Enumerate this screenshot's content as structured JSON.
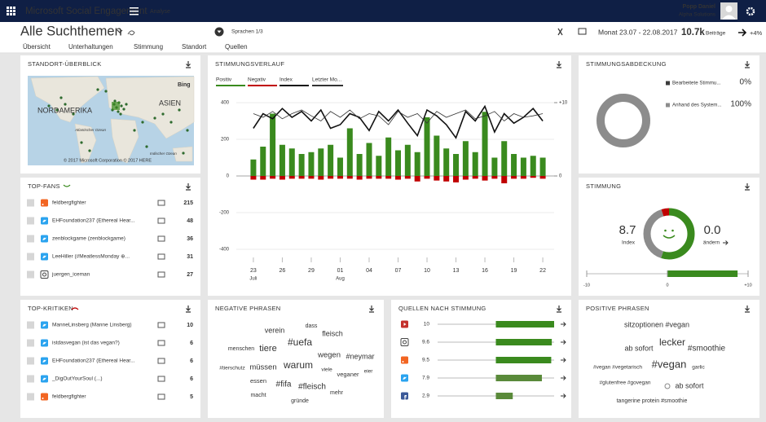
{
  "header": {
    "app_title": "Microsoft Social Engagement",
    "section": "Analyse",
    "user_name": "Popp Daniel",
    "user_org": "Alpha Solutions"
  },
  "toolbar": {
    "title": "Alle Suchthemen",
    "languages": "Sprachen 1/3",
    "period": "Monat 23.07 - 22.08.2017",
    "posts_count": "10.7k",
    "posts_label": "Beiträge",
    "change": "+4%"
  },
  "tabs": [
    "Übersicht",
    "Unterhaltungen",
    "Stimmung",
    "Standort",
    "Quellen"
  ],
  "active_tab": 2,
  "map_panel": {
    "title": "STANDORT-ÜBERBLICK",
    "continent_labels": [
      "NORDAMERIKA",
      "ASIEN"
    ],
    "ocean_labels": [
      "Atlantischer Ozean",
      "Indischer Ozean"
    ],
    "provider": "Bing",
    "copyright": "© 2017 Microsoft Corporation © 2017 HERE"
  },
  "top_fans": {
    "title": "TOP-FANS",
    "rows": [
      {
        "name": "feldbergfighter",
        "platform": "rss",
        "value": 215
      },
      {
        "name": "EHFoundation237 (Ethereal Hear...",
        "platform": "twitter",
        "value": 48
      },
      {
        "name": "zenblockgame (zenblockgame)",
        "platform": "twitter",
        "value": 36
      },
      {
        "name": "LeeHiller (#MeatlessMonday ⊕...",
        "platform": "twitter",
        "value": 31
      },
      {
        "name": "juergen_iceman",
        "platform": "instagram",
        "value": 27
      }
    ]
  },
  "top_critics": {
    "title": "TOP-KRITIKEN",
    "rows": [
      {
        "name": "ManneLinsberg (Manne Linsberg)",
        "platform": "twitter",
        "value": 10
      },
      {
        "name": "istdasvegan (ist das vegan?)",
        "platform": "twitter",
        "value": 6
      },
      {
        "name": "EHFoundation237 (Ethereal Hear...",
        "platform": "twitter",
        "value": 6
      },
      {
        "name": "_DigOutYourSoul (...)",
        "platform": "twitter",
        "value": 6
      },
      {
        "name": "feldbergfighter",
        "platform": "rss",
        "value": 5
      }
    ]
  },
  "chart_data": {
    "type": "bar",
    "title": "STIMMUNGSVERLAUF",
    "categories": [
      "23",
      null,
      null,
      "26",
      null,
      null,
      "29",
      null,
      null,
      "01",
      null,
      null,
      "04",
      null,
      null,
      "07",
      null,
      null,
      "10",
      null,
      null,
      "13",
      null,
      null,
      "16",
      null,
      null,
      "19",
      null,
      null,
      "22"
    ],
    "month_labels": [
      "Juli",
      null,
      null,
      null,
      null,
      null,
      null,
      null,
      null,
      "Aug",
      null,
      null,
      null,
      null,
      null,
      null,
      null,
      null,
      null,
      null,
      null,
      null,
      null,
      null,
      null,
      null,
      null,
      null,
      null,
      null,
      null
    ],
    "series": [
      {
        "name": "Positiv",
        "color": "#3a8a1e",
        "values": [
          90,
          160,
          340,
          170,
          150,
          120,
          130,
          150,
          170,
          100,
          260,
          120,
          180,
          110,
          210,
          140,
          170,
          130,
          320,
          220,
          150,
          120,
          190,
          130,
          350,
          100,
          190,
          120,
          100,
          110,
          100
        ]
      },
      {
        "name": "Negativ",
        "color": "#c00000",
        "values": [
          -20,
          -20,
          -15,
          -20,
          -15,
          -15,
          -15,
          -20,
          -15,
          -15,
          -15,
          -20,
          -15,
          -15,
          -15,
          -20,
          -15,
          -30,
          -15,
          -25,
          -30,
          -35,
          -20,
          -15,
          -25,
          -15,
          -40,
          -15,
          -15,
          -10,
          -15
        ]
      },
      {
        "name": "Index",
        "color": "#111111",
        "axis": "y2",
        "values": [
          6.5,
          8.5,
          7.8,
          9.2,
          8.0,
          8.8,
          7.5,
          9.0,
          6.5,
          7.0,
          8.5,
          8.0,
          6.2,
          8.8,
          7.5,
          9.0,
          7.2,
          5.5,
          9.0,
          8.2,
          7.0,
          5.2,
          8.8,
          7.5,
          9.5,
          6.0,
          8.5,
          7.2,
          8.0,
          9.2,
          7.5
        ]
      },
      {
        "name": "Letzter Mo...",
        "color": "#333333",
        "axis": "y2",
        "values": [
          8.5,
          8.0,
          8.8,
          7.8,
          8.5,
          9.0,
          8.2,
          7.5,
          8.8,
          8.0,
          9.0,
          7.8,
          8.5,
          8.2,
          7.0,
          8.8,
          8.0,
          8.5,
          7.2,
          8.8,
          8.0,
          8.5,
          9.0,
          7.8,
          8.2,
          8.8,
          7.5,
          8.5,
          8.0,
          8.2,
          8.5
        ]
      }
    ],
    "ylim": [
      -400,
      400
    ],
    "yticks": [
      -400,
      -200,
      0,
      200,
      400
    ],
    "y2lim": [
      -10,
      10
    ],
    "y2ticks": [
      0,
      {
        "value": 10,
        "label": "+10"
      }
    ],
    "grid": true
  },
  "coverage": {
    "title": "STIMMUNGSABDECKUNG",
    "items": [
      {
        "label": "Bearbeitete Stimmu...",
        "value": 0,
        "value_label": "0%",
        "color": "#3c3c3c"
      },
      {
        "label": "Anhand des System...",
        "value": 100,
        "value_label": "100%",
        "color": "#8c8c8c"
      }
    ]
  },
  "sentiment": {
    "title": "STIMMUNG",
    "index": 8.7,
    "index_label": "Index",
    "change": {
      "value": 0,
      "label": "0.0"
    },
    "change_label": "ändern",
    "donut": [
      {
        "value": 55,
        "color": "#3a8a1e"
      },
      {
        "value": 40,
        "color": "#8c8c8c"
      },
      {
        "value": 5,
        "color": "#c00000"
      }
    ],
    "scale_lim": [
      -10,
      10
    ],
    "scale_ticks": [
      -10,
      0,
      {
        "value": 10,
        "label": "+10"
      }
    ]
  },
  "negative_phrases": {
    "title": "NEGATIVE PHRASEN",
    "words": [
      "dass",
      "verein",
      "fleisch",
      "#uefa",
      "menschen",
      "tiere",
      "wegen",
      "#neymar",
      "#tierschutz",
      "müssen",
      "warum",
      "viele",
      "veganer",
      "eier",
      "essen",
      "#fifa",
      "#fleisch",
      "macht",
      "mehr",
      "gründe"
    ]
  },
  "sources": {
    "title": "QUELLEN NACH STIMMUNG",
    "xlim": [
      -10,
      10
    ],
    "rows": [
      {
        "platform": "youtube",
        "value": 10
      },
      {
        "platform": "instagram",
        "value": 9.6
      },
      {
        "platform": "rss",
        "value": 9.5
      },
      {
        "platform": "twitter",
        "value": 7.9
      },
      {
        "platform": "facebook",
        "value": 2.9
      }
    ]
  },
  "positive_phrases": {
    "title": "POSITIVE PHRASEN",
    "words": [
      "sitzoptionen #vegan",
      "lecker",
      "ab sofort",
      "#smoothie",
      "#vegan #vegetarisch",
      "#vegan",
      "garlic",
      "#glutenfree #govegan",
      "ab sofort",
      "tangerine protein #smoothie"
    ]
  }
}
